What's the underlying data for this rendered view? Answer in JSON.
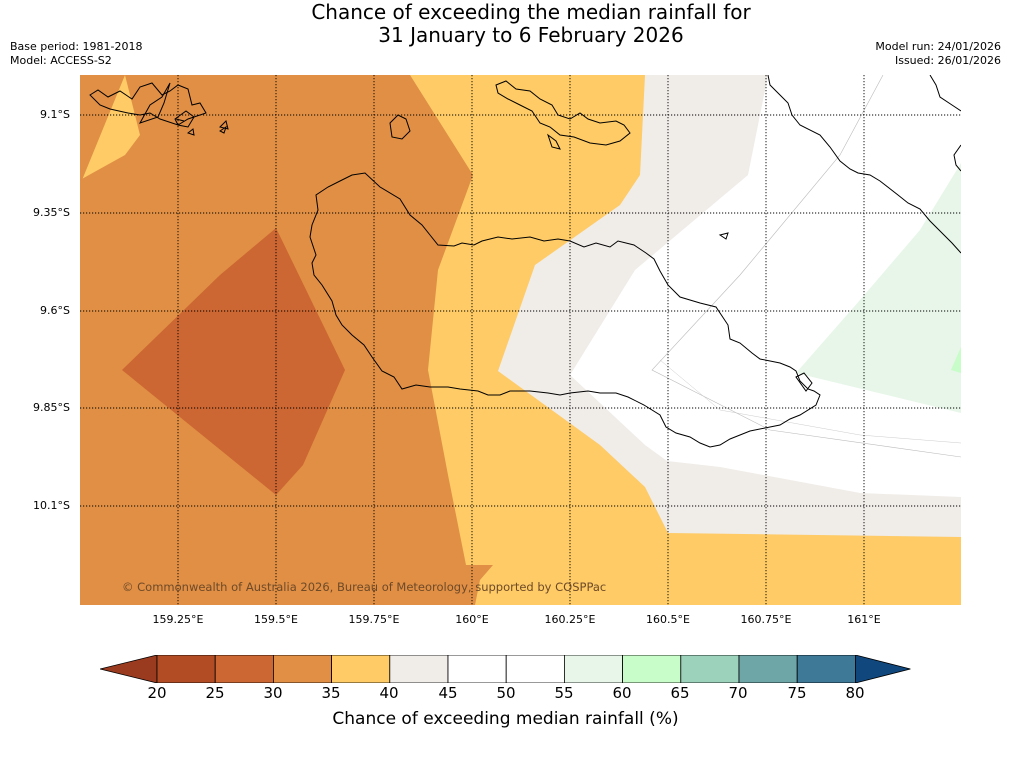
{
  "title": {
    "line1": "Chance of exceeding the median rainfall for",
    "line2": "31 January to 6 February 2026"
  },
  "meta_left": {
    "base_period": "Base period: 1981-2018",
    "model": "Model: ACCESS-S2"
  },
  "meta_right": {
    "model_run": "Model run: 24/01/2026",
    "issued": "Issued: 26/01/2026"
  },
  "map": {
    "lat_labels": [
      "9.1°S",
      "9.35°S",
      "9.6°S",
      "9.85°S",
      "10.1°S"
    ],
    "lon_labels": [
      "159.25°E",
      "159.5°E",
      "159.75°E",
      "160°E",
      "160.25°E",
      "160.5°E",
      "160.75°E",
      "161°E"
    ],
    "copyright": "© Commonwealth of Australia 2026, Bureau of Meteorology, supported by COSPPac"
  },
  "colorbar": {
    "ticks": [
      "20",
      "25",
      "30",
      "35",
      "40",
      "45",
      "50",
      "55",
      "60",
      "65",
      "70",
      "75",
      "80"
    ],
    "label": "Chance of exceeding median rainfall (%)",
    "colors": {
      "under_20": "#9a3a1f",
      "20_25": "#b24c25",
      "25_30": "#cc6632",
      "30_35": "#e08f45",
      "35_40": "#fecb66",
      "40_45": "#f0ece8",
      "45_50": "#ffffff",
      "50_55": "#ffffff",
      "55_60": "#e7f6e8",
      "60_65": "#c8fcc8",
      "65_70": "#9cd2bc",
      "70_75": "#6ea5a6",
      "75_80": "#3e7a98",
      "over_80": "#10487e"
    }
  }
}
